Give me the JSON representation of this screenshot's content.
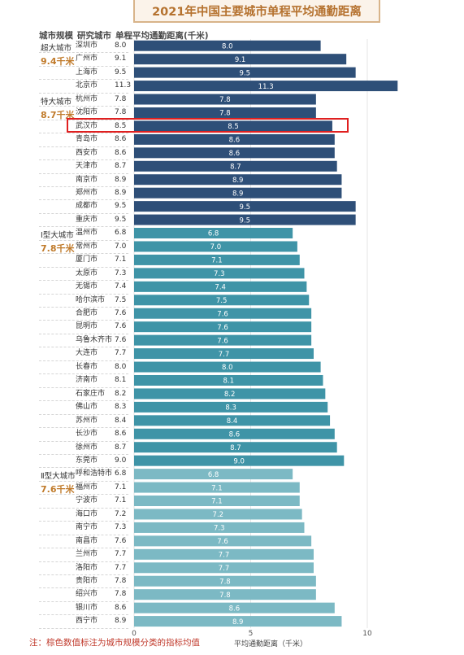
{
  "chart_data": {
    "type": "bar",
    "orientation": "horizontal",
    "title": "2021年中国主要城市单程平均通勤距离",
    "columns": [
      "城市规模",
      "研究城市",
      "单程平均通勤距离(千米)"
    ],
    "xlabel": "平均通勤距离（千米）",
    "xlim": [
      0,
      12
    ],
    "xticks": [
      0,
      5,
      10
    ],
    "tiers": [
      {
        "name": "超大城市",
        "avg": "9.4千米",
        "color": "#2e4f78"
      },
      {
        "name": "特大城市",
        "avg": "8.7千米",
        "color": "#2e4f78"
      },
      {
        "name": "Ⅰ型大城市",
        "avg": "7.8千米",
        "color": "#3f94a7"
      },
      {
        "name": "Ⅱ型大城市",
        "avg": "7.6千米",
        "color": "#7cb9c4"
      }
    ],
    "rows": [
      {
        "city": "深圳市",
        "value": 8.0,
        "tier": 0
      },
      {
        "city": "广州市",
        "value": 9.1,
        "tier": 0
      },
      {
        "city": "上海市",
        "value": 9.5,
        "tier": 0
      },
      {
        "city": "北京市",
        "value": 11.3,
        "tier": 0
      },
      {
        "city": "杭州市",
        "value": 7.8,
        "tier": 1
      },
      {
        "city": "沈阳市",
        "value": 7.8,
        "tier": 1
      },
      {
        "city": "武汉市",
        "value": 8.5,
        "tier": 1
      },
      {
        "city": "青岛市",
        "value": 8.6,
        "tier": 1
      },
      {
        "city": "西安市",
        "value": 8.6,
        "tier": 1
      },
      {
        "city": "天津市",
        "value": 8.7,
        "tier": 1
      },
      {
        "city": "南京市",
        "value": 8.9,
        "tier": 1
      },
      {
        "city": "郑州市",
        "value": 8.9,
        "tier": 1
      },
      {
        "city": "成都市",
        "value": 9.5,
        "tier": 1
      },
      {
        "city": "重庆市",
        "value": 9.5,
        "tier": 1
      },
      {
        "city": "温州市",
        "value": 6.8,
        "tier": 2
      },
      {
        "city": "常州市",
        "value": 7.0,
        "tier": 2
      },
      {
        "city": "厦门市",
        "value": 7.1,
        "tier": 2
      },
      {
        "city": "太原市",
        "value": 7.3,
        "tier": 2
      },
      {
        "city": "无锡市",
        "value": 7.4,
        "tier": 2
      },
      {
        "city": "哈尔滨市",
        "value": 7.5,
        "tier": 2
      },
      {
        "city": "合肥市",
        "value": 7.6,
        "tier": 2
      },
      {
        "city": "昆明市",
        "value": 7.6,
        "tier": 2
      },
      {
        "city": "乌鲁木齐市",
        "value": 7.6,
        "tier": 2
      },
      {
        "city": "大连市",
        "value": 7.7,
        "tier": 2
      },
      {
        "city": "长春市",
        "value": 8.0,
        "tier": 2
      },
      {
        "city": "济南市",
        "value": 8.1,
        "tier": 2
      },
      {
        "city": "石家庄市",
        "value": 8.2,
        "tier": 2
      },
      {
        "city": "佛山市",
        "value": 8.3,
        "tier": 2
      },
      {
        "city": "苏州市",
        "value": 8.4,
        "tier": 2
      },
      {
        "city": "长沙市",
        "value": 8.6,
        "tier": 2
      },
      {
        "city": "徐州市",
        "value": 8.7,
        "tier": 2
      },
      {
        "city": "东莞市",
        "value": 9.0,
        "tier": 2
      },
      {
        "city": "呼和浩特市",
        "value": 6.8,
        "tier": 3
      },
      {
        "city": "福州市",
        "value": 7.1,
        "tier": 3
      },
      {
        "city": "宁波市",
        "value": 7.1,
        "tier": 3
      },
      {
        "city": "海口市",
        "value": 7.2,
        "tier": 3
      },
      {
        "city": "南宁市",
        "value": 7.3,
        "tier": 3
      },
      {
        "city": "南昌市",
        "value": 7.6,
        "tier": 3
      },
      {
        "city": "兰州市",
        "value": 7.7,
        "tier": 3
      },
      {
        "city": "洛阳市",
        "value": 7.7,
        "tier": 3
      },
      {
        "city": "贵阳市",
        "value": 7.8,
        "tier": 3
      },
      {
        "city": "绍兴市",
        "value": 7.8,
        "tier": 3
      },
      {
        "city": "银川市",
        "value": 8.6,
        "tier": 3
      },
      {
        "city": "西宁市",
        "value": 8.9,
        "tier": 3
      }
    ],
    "highlight_city": "武汉市"
  },
  "note": "注：棕色数值标注为城市规模分类的指标均值"
}
